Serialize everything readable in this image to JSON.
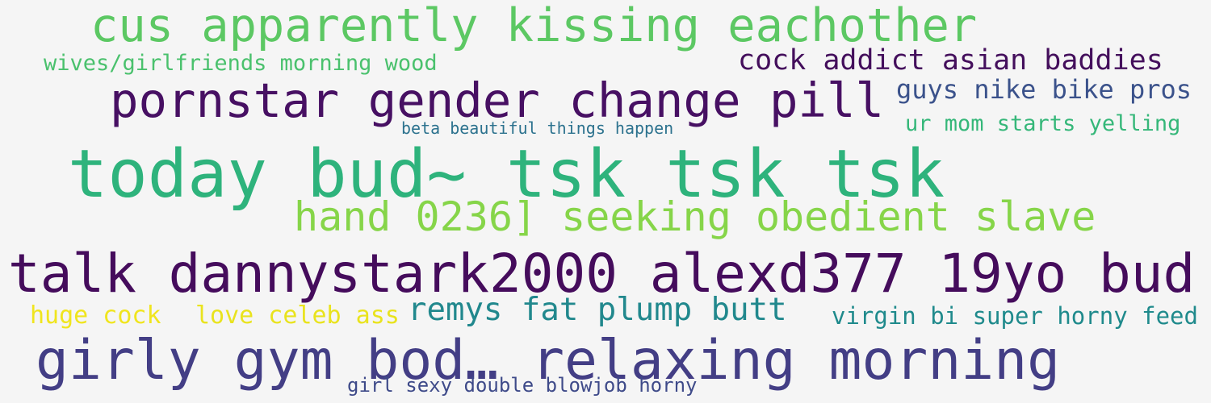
{
  "phrases": [
    {
      "text": "cus apparently kissing eachother",
      "color": "#5cc863"
    },
    {
      "text": "wives/girlfriends morning wood",
      "color": "#4ac16d"
    },
    {
      "text": "cock addict asian baddies",
      "color": "#440f5c"
    },
    {
      "text": "pornstar gender change pill",
      "color": "#471063"
    },
    {
      "text": "guys nike bike pros",
      "color": "#3b528b"
    },
    {
      "text": "beta beautiful things happen",
      "color": "#2c728e"
    },
    {
      "text": "ur mom starts yelling",
      "color": "#35b779"
    },
    {
      "text": "today bud~ tsk tsk tsk",
      "color": "#2eb37c"
    },
    {
      "text": "hand 0236] seeking obedient slave",
      "color": "#86d549"
    },
    {
      "text": "talk dannystark2000 alexd377 19yo bud",
      "color": "#450c5c"
    },
    {
      "text": "huge cock",
      "color": "#f0e51e"
    },
    {
      "text": "love celeb ass",
      "color": "#e9e31e"
    },
    {
      "text": "remys fat plump butt",
      "color": "#21888d"
    },
    {
      "text": "virgin bi super horny feed",
      "color": "#1f8a8c"
    },
    {
      "text": "girly gym bod… relaxing morning",
      "color": "#433e85"
    },
    {
      "text": "girl sexy double blowjob horny",
      "color": "#3e4a89"
    }
  ]
}
